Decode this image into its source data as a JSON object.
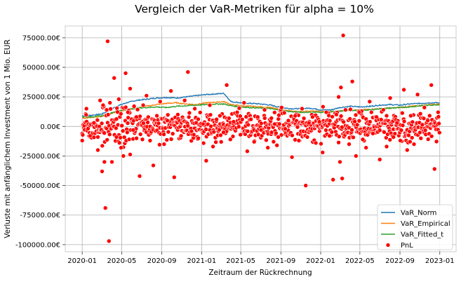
{
  "chart_data": {
    "type": "line",
    "title": "Vergleich der VaR-Metriken für alpha = 10%",
    "xlabel": "Zeitraum der Rückrechnung",
    "ylabel": "Verluste mit anfänglichem Investment von 1 Mio. EUR",
    "x_start": "2020-01-01",
    "x_end": "2022-12-31",
    "xlim": [
      "2019-11-10",
      "2023-02-20"
    ],
    "ylim": [
      -106000,
      85000
    ],
    "x_ticks": [
      "2020-01",
      "2020-05",
      "2020-09",
      "2021-01",
      "2021-05",
      "2021-09",
      "2022-01",
      "2022-05",
      "2022-09",
      "2023-01"
    ],
    "y_ticks": [
      {
        "value": 75000,
        "label": "75000.00€"
      },
      {
        "value": 50000,
        "label": "50000.00€"
      },
      {
        "value": 25000,
        "label": "25000.00€"
      },
      {
        "value": 0,
        "label": "0.00€"
      },
      {
        "value": -25000,
        "label": "-25000.00€"
      },
      {
        "value": -50000,
        "label": "-50000.00€"
      },
      {
        "value": -75000,
        "label": "-75000.00€"
      },
      {
        "value": -100000,
        "label": "-100000.00€"
      }
    ],
    "grid": true,
    "legend_position": "bottom-right",
    "series": [
      {
        "name": "VaR_Norm",
        "kind": "line",
        "color": "#1f77b4",
        "x": [
          "2020-01-01",
          "2020-02-01",
          "2020-03-01",
          "2020-03-20",
          "2020-04-15",
          "2020-05-15",
          "2020-06-15",
          "2020-07-15",
          "2020-08-15",
          "2020-09-15",
          "2020-10-15",
          "2020-11-15",
          "2020-12-15",
          "2021-01-15",
          "2021-02-15",
          "2021-03-10",
          "2021-04-01",
          "2021-05-01",
          "2021-06-01",
          "2021-07-01",
          "2021-08-01",
          "2021-09-01",
          "2021-10-01",
          "2021-11-01",
          "2021-12-01",
          "2022-01-01",
          "2022-02-01",
          "2022-03-01",
          "2022-04-01",
          "2022-05-01",
          "2022-06-01",
          "2022-07-01",
          "2022-08-01",
          "2022-09-01",
          "2022-10-01",
          "2022-11-01",
          "2022-12-01",
          "2022-12-31"
        ],
        "values": [
          9000,
          9500,
          10500,
          13000,
          17000,
          20000,
          22000,
          23000,
          24000,
          24500,
          24000,
          25000,
          26000,
          27000,
          27500,
          28000,
          21000,
          20000,
          19500,
          19000,
          18000,
          16000,
          15000,
          15000,
          15500,
          14000,
          14000,
          16000,
          17000,
          16500,
          17000,
          18000,
          18500,
          18000,
          19000,
          19500,
          20000,
          20000
        ]
      },
      {
        "name": "VaR_Empirical",
        "kind": "line",
        "color": "#ff7f0e",
        "x": [
          "2020-01-01",
          "2020-02-01",
          "2020-03-01",
          "2020-03-20",
          "2020-04-15",
          "2020-05-15",
          "2020-06-15",
          "2020-07-15",
          "2020-08-15",
          "2020-09-15",
          "2020-10-15",
          "2020-11-15",
          "2020-12-15",
          "2021-01-15",
          "2021-02-15",
          "2021-03-10",
          "2021-04-01",
          "2021-05-01",
          "2021-06-01",
          "2021-07-01",
          "2021-08-01",
          "2021-09-01",
          "2021-10-01",
          "2021-11-01",
          "2021-12-01",
          "2022-01-01",
          "2022-02-01",
          "2022-03-01",
          "2022-04-01",
          "2022-05-01",
          "2022-06-01",
          "2022-07-01",
          "2022-08-01",
          "2022-09-01",
          "2022-10-01",
          "2022-11-01",
          "2022-12-01",
          "2022-12-31"
        ],
        "values": [
          7000,
          7500,
          8500,
          10000,
          12500,
          14000,
          15500,
          17000,
          18500,
          19500,
          20000,
          19000,
          18500,
          20000,
          20500,
          21000,
          18500,
          17500,
          17000,
          16500,
          16000,
          14000,
          13000,
          12500,
          13000,
          12500,
          12500,
          13000,
          14000,
          14000,
          14500,
          15000,
          15500,
          16000,
          17000,
          17500,
          18500,
          19000
        ]
      },
      {
        "name": "VaR_Fitted_t",
        "kind": "line",
        "color": "#2ca02c",
        "x": [
          "2020-01-01",
          "2020-02-01",
          "2020-03-01",
          "2020-03-20",
          "2020-04-15",
          "2020-05-15",
          "2020-06-15",
          "2020-07-15",
          "2020-08-15",
          "2020-09-15",
          "2020-10-15",
          "2020-11-15",
          "2020-12-15",
          "2021-01-15",
          "2021-02-15",
          "2021-03-10",
          "2021-04-01",
          "2021-05-01",
          "2021-06-01",
          "2021-07-01",
          "2021-08-01",
          "2021-09-01",
          "2021-10-01",
          "2021-11-01",
          "2021-12-01",
          "2022-01-01",
          "2022-02-01",
          "2022-03-01",
          "2022-04-01",
          "2022-05-01",
          "2022-06-01",
          "2022-07-01",
          "2022-08-01",
          "2022-09-01",
          "2022-10-01",
          "2022-11-01",
          "2022-12-01",
          "2022-12-31"
        ],
        "values": [
          8000,
          8200,
          9000,
          10500,
          13000,
          14500,
          15500,
          16000,
          16500,
          16000,
          17000,
          17500,
          18000,
          18500,
          19000,
          19000,
          17500,
          16500,
          16000,
          15500,
          15000,
          13500,
          12500,
          12000,
          12000,
          12000,
          12500,
          13000,
          13500,
          13500,
          14000,
          15000,
          15500,
          16000,
          16500,
          17500,
          18000,
          18500
        ]
      },
      {
        "name": "PnL",
        "kind": "scatter",
        "color": "#ff0000",
        "x": [
          "2020-01-01",
          "2020-01-14",
          "2020-01-25",
          "2020-02-06",
          "2020-02-18",
          "2020-02-25",
          "2020-03-02",
          "2020-03-05",
          "2020-03-09",
          "2020-03-12",
          "2020-03-16",
          "2020-03-19",
          "2020-03-23",
          "2020-03-26",
          "2020-04-01",
          "2020-04-08",
          "2020-04-15",
          "2020-04-22",
          "2020-04-29",
          "2020-05-06",
          "2020-05-13",
          "2020-05-20",
          "2020-05-27",
          "2020-06-05",
          "2020-06-15",
          "2020-06-25",
          "2020-07-06",
          "2020-07-16",
          "2020-07-27",
          "2020-08-06",
          "2020-08-17",
          "2020-08-27",
          "2020-09-08",
          "2020-09-18",
          "2020-09-29",
          "2020-10-09",
          "2020-10-20",
          "2020-10-30",
          "2020-11-10",
          "2020-11-20",
          "2020-12-01",
          "2020-12-11",
          "2020-12-22",
          "2021-01-05",
          "2021-01-15",
          "2021-01-26",
          "2021-02-05",
          "2021-02-16",
          "2021-02-26",
          "2021-03-09",
          "2021-03-19",
          "2021-03-30",
          "2021-04-09",
          "2021-04-20",
          "2021-04-30",
          "2021-05-11",
          "2021-05-21",
          "2021-06-01",
          "2021-06-11",
          "2021-06-22",
          "2021-07-02",
          "2021-07-13",
          "2021-07-23",
          "2021-08-03",
          "2021-08-13",
          "2021-08-24",
          "2021-09-03",
          "2021-09-14",
          "2021-09-24",
          "2021-10-05",
          "2021-10-15",
          "2021-10-26",
          "2021-11-05",
          "2021-11-16",
          "2021-11-26",
          "2021-12-07",
          "2021-12-17",
          "2021-12-28",
          "2022-01-07",
          "2022-01-18",
          "2022-01-28",
          "2022-02-08",
          "2022-02-18",
          "2022-02-25",
          "2022-03-01",
          "2022-03-04",
          "2022-03-08",
          "2022-03-11",
          "2022-03-18",
          "2022-03-29",
          "2022-04-08",
          "2022-04-19",
          "2022-04-29",
          "2022-05-10",
          "2022-05-20",
          "2022-05-31",
          "2022-06-10",
          "2022-06-21",
          "2022-07-01",
          "2022-07-12",
          "2022-07-22",
          "2022-08-02",
          "2022-08-12",
          "2022-08-23",
          "2022-09-02",
          "2022-09-13",
          "2022-09-23",
          "2022-10-04",
          "2022-10-14",
          "2022-10-25",
          "2022-11-04",
          "2022-11-15",
          "2022-11-25",
          "2022-12-06",
          "2022-12-16",
          "2022-12-27"
        ],
        "values": [
          -12000,
          15000,
          -8000,
          3000,
          -20000,
          22000,
          -38000,
          18000,
          -30000,
          -69000,
          14000,
          72000,
          -97000,
          20000,
          -30000,
          41000,
          -9000,
          23000,
          -18000,
          -25000,
          45000,
          12000,
          32000,
          -3000,
          8000,
          -42000,
          18000,
          26000,
          -12000,
          -33000,
          9000,
          21000,
          -15000,
          5000,
          30000,
          -43000,
          10000,
          -8000,
          22000,
          46000,
          -4000,
          15000,
          -10000,
          2000,
          -29000,
          18000,
          -17000,
          6000,
          9000,
          -5000,
          35000,
          -11000,
          4000,
          12000,
          -7000,
          20000,
          -21000,
          6000,
          -13000,
          8000,
          -3000,
          14000,
          -18000,
          7000,
          2000,
          -9000,
          16000,
          -2000,
          5000,
          -26000,
          9000,
          -12000,
          15000,
          -50000,
          3000,
          8000,
          -14000,
          4000,
          -22000,
          12000,
          -8000,
          -45000,
          10000,
          25000,
          -30000,
          33000,
          -44000,
          77000,
          14000,
          -15000,
          38000,
          -25000,
          12000,
          -11000,
          -18000,
          21000,
          -6000,
          8000,
          -28000,
          14000,
          -17000,
          24000,
          -9000,
          3000,
          -12000,
          31000,
          -20000,
          9000,
          -15000,
          27000,
          -10000,
          16000,
          5000,
          35000,
          -36000,
          12000
        ]
      }
    ]
  }
}
